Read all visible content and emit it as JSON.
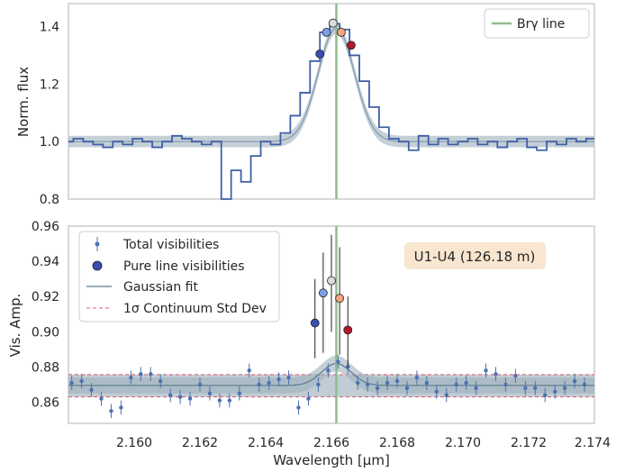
{
  "chart_data": [
    {
      "type": "line",
      "panel": "top",
      "ylabel": "Norm. flux",
      "xlabel": "",
      "ylim": [
        0.8,
        1.48
      ],
      "xlim": [
        2.158,
        2.174
      ],
      "yticks": [
        "0.8",
        "1.0",
        "1.2",
        "1.4"
      ],
      "legend": {
        "position": "top-right",
        "entries": [
          {
            "label": "Brγ line",
            "color": "#8fbc8f"
          }
        ]
      },
      "line_marker_x": 2.16615,
      "gaussian": {
        "amp": 0.395,
        "mu": 2.16615,
        "sigma": 0.00055,
        "base": 1.0
      },
      "step_spectrum": {
        "x": [
          2.158,
          2.1583,
          2.1586,
          2.1589,
          2.1592,
          2.1595,
          2.1598,
          2.1601,
          2.1604,
          2.1607,
          2.161,
          2.1613,
          2.1616,
          2.1619,
          2.1622,
          2.1625,
          2.1628,
          2.1631,
          2.1634,
          2.1637,
          2.164,
          2.1643,
          2.1646,
          2.1649,
          2.1652,
          2.1655,
          2.1658,
          2.1661,
          2.1664,
          2.1667,
          2.167,
          2.1673,
          2.1676,
          2.1679,
          2.1682,
          2.1685,
          2.1688,
          2.1691,
          2.1694,
          2.1697,
          2.17,
          2.1703,
          2.1706,
          2.1709,
          2.1712,
          2.1715,
          2.1718,
          2.1721,
          2.1724,
          2.1727,
          2.173,
          2.1733,
          2.1736,
          2.1739
        ],
        "y": [
          1.0,
          1.01,
          1.0,
          0.99,
          0.98,
          1.0,
          0.99,
          1.01,
          1.0,
          0.98,
          1.0,
          1.02,
          1.01,
          1.0,
          0.99,
          1.0,
          0.8,
          0.9,
          0.86,
          0.95,
          1.0,
          0.99,
          1.03,
          1.09,
          1.17,
          1.28,
          1.38,
          1.41,
          1.39,
          1.3,
          1.21,
          1.12,
          1.05,
          1.01,
          1.0,
          0.97,
          1.02,
          0.99,
          1.01,
          0.99,
          1.0,
          1.01,
          0.99,
          1.0,
          0.98,
          1.0,
          1.01,
          0.98,
          0.97,
          1.0,
          0.99,
          1.01,
          1.0,
          1.01
        ]
      },
      "markers": [
        {
          "x": 2.16565,
          "y": 1.305,
          "color": "#3a4db3"
        },
        {
          "x": 2.16585,
          "y": 1.38,
          "color": "#7b9ee6"
        },
        {
          "x": 2.16605,
          "y": 1.412,
          "color": "#dcdcdc"
        },
        {
          "x": 2.1663,
          "y": 1.38,
          "color": "#f4a582"
        },
        {
          "x": 2.1666,
          "y": 1.335,
          "color": "#b2182b"
        }
      ]
    },
    {
      "type": "scatter",
      "panel": "bottom",
      "xlabel": "Wavelength [μm]",
      "ylabel": "Vis. Amp.",
      "xlim": [
        2.158,
        2.174
      ],
      "ylim": [
        0.848,
        0.96
      ],
      "xticks": [
        "2.160",
        "2.162",
        "2.164",
        "2.166",
        "2.168",
        "2.170",
        "2.172",
        "2.174"
      ],
      "yticks": [
        "0.86",
        "0.88",
        "0.90",
        "0.92",
        "0.94",
        "0.96"
      ],
      "annotation": "U1-U4 (126.18 m)",
      "legend": {
        "position": "top-left",
        "entries": [
          {
            "label": "Total visibilities"
          },
          {
            "label": "Pure line visibilities"
          },
          {
            "label": "Gaussian fit"
          },
          {
            "label": "1σ Continuum Std Dev"
          }
        ]
      },
      "continuum": {
        "mean": 0.8695,
        "std_low": 0.863,
        "std_high": 0.8757
      },
      "gaussian": {
        "amp": 0.0125,
        "mu": 2.16615,
        "sigma": 0.00045,
        "base": 0.8695
      },
      "line_marker_x": 2.16615,
      "total_visibilities": {
        "x": [
          2.1581,
          2.1584,
          2.1587,
          2.159,
          2.1593,
          2.1596,
          2.1599,
          2.1602,
          2.1605,
          2.1608,
          2.1611,
          2.1614,
          2.1617,
          2.162,
          2.1623,
          2.1626,
          2.1629,
          2.1632,
          2.1635,
          2.1638,
          2.1641,
          2.1644,
          2.1647,
          2.165,
          2.1653,
          2.1656,
          2.1659,
          2.1662,
          2.1665,
          2.1668,
          2.1671,
          2.1674,
          2.1677,
          2.168,
          2.1683,
          2.1686,
          2.1689,
          2.1692,
          2.1695,
          2.1698,
          2.1701,
          2.1704,
          2.1707,
          2.171,
          2.1713,
          2.1716,
          2.1719,
          2.1722,
          2.1725,
          2.1728,
          2.1731,
          2.1734,
          2.1737
        ],
        "y": [
          0.871,
          0.872,
          0.867,
          0.862,
          0.855,
          0.857,
          0.874,
          0.876,
          0.876,
          0.872,
          0.864,
          0.863,
          0.862,
          0.87,
          0.865,
          0.861,
          0.861,
          0.865,
          0.878,
          0.87,
          0.871,
          0.873,
          0.874,
          0.857,
          0.862,
          0.87,
          0.878,
          0.883,
          0.88,
          0.871,
          0.87,
          0.868,
          0.871,
          0.872,
          0.868,
          0.874,
          0.871,
          0.866,
          0.864,
          0.87,
          0.871,
          0.868,
          0.878,
          0.876,
          0.87,
          0.875,
          0.868,
          0.868,
          0.864,
          0.866,
          0.868,
          0.872,
          0.87
        ],
        "err": [
          0.004,
          0.004,
          0.004,
          0.004,
          0.004,
          0.004,
          0.004,
          0.004,
          0.004,
          0.004,
          0.004,
          0.004,
          0.004,
          0.004,
          0.004,
          0.004,
          0.004,
          0.004,
          0.004,
          0.004,
          0.004,
          0.004,
          0.004,
          0.004,
          0.004,
          0.004,
          0.004,
          0.004,
          0.004,
          0.004,
          0.004,
          0.004,
          0.004,
          0.004,
          0.004,
          0.004,
          0.004,
          0.004,
          0.004,
          0.004,
          0.004,
          0.004,
          0.004,
          0.004,
          0.004,
          0.004,
          0.004,
          0.004,
          0.004,
          0.004,
          0.004,
          0.004,
          0.004
        ]
      },
      "pure_line_visibilities": [
        {
          "x": 2.1655,
          "y": 0.905,
          "err_low": 0.885,
          "err_high": 0.93,
          "color": "#3a4db3"
        },
        {
          "x": 2.16575,
          "y": 0.922,
          "err_low": 0.888,
          "err_high": 0.945,
          "color": "#7b9ee6"
        },
        {
          "x": 2.166,
          "y": 0.929,
          "err_low": 0.9,
          "err_high": 0.955,
          "color": "#dcdcdc"
        },
        {
          "x": 2.16625,
          "y": 0.919,
          "err_low": 0.887,
          "err_high": 0.948,
          "color": "#f4a582"
        },
        {
          "x": 2.1665,
          "y": 0.901,
          "err_low": 0.88,
          "err_high": 0.92,
          "color": "#b2182b"
        }
      ]
    }
  ]
}
